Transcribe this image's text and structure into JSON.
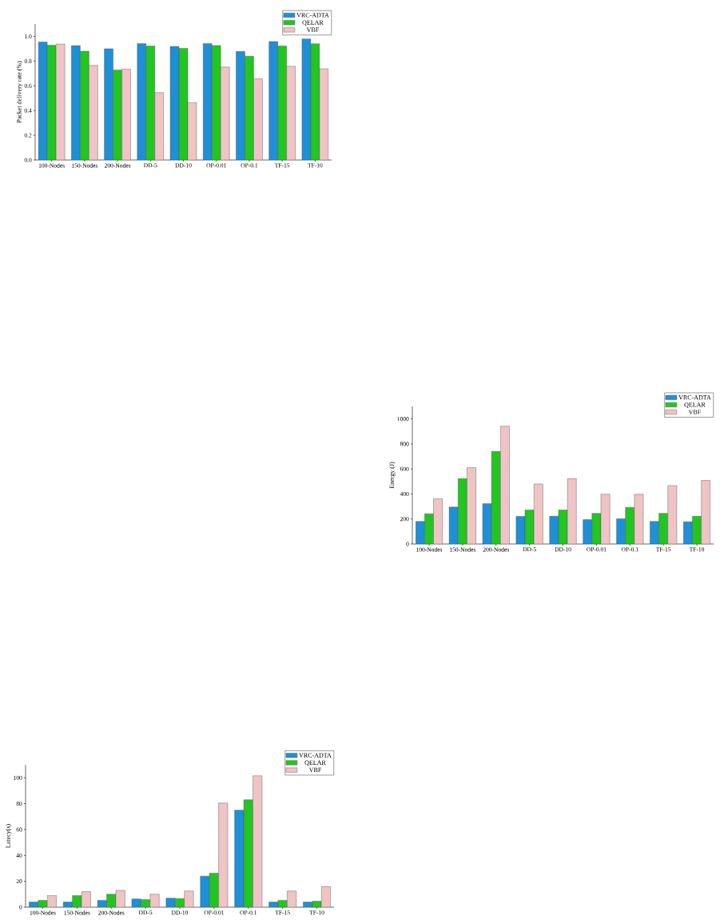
{
  "chart_data": [
    {
      "type": "bar",
      "ylabel": "Packet delivery rate (%)",
      "categories": [
        "100-Nodes",
        "150-Nodes",
        "200-Nodes",
        "DD-5",
        "DD-10",
        "OP-0.01",
        "OP-0.1",
        "TF-15",
        "TF-10"
      ],
      "series": [
        {
          "name": "VRC-ADTA",
          "color": "#1f8fd8",
          "values": [
            0.955,
            0.925,
            0.9,
            0.942,
            0.918,
            0.942,
            0.878,
            0.958,
            0.98
          ]
        },
        {
          "name": "QELAR",
          "color": "#22c522",
          "values": [
            0.928,
            0.88,
            0.728,
            0.922,
            0.903,
            0.926,
            0.84,
            0.922,
            0.942
          ]
        },
        {
          "name": "VBF",
          "color": "#f0c4c4",
          "values": [
            0.938,
            0.765,
            0.735,
            0.545,
            0.465,
            0.752,
            0.657,
            0.758,
            0.738
          ]
        }
      ],
      "ylim": [
        0,
        1.1
      ],
      "yticks": [
        {
          "value": 0,
          "label": "0.0"
        },
        {
          "value": 0.2,
          "label": "0.2"
        },
        {
          "value": 0.4,
          "label": "0.4"
        },
        {
          "value": 0.6,
          "label": "0.6"
        },
        {
          "value": 0.8,
          "label": "0.8"
        },
        {
          "value": 1.0,
          "label": "1.0"
        }
      ],
      "legend": "top right"
    },
    {
      "type": "bar",
      "ylabel": "Energy (J)",
      "categories": [
        "100-Nodes",
        "150-Nodes",
        "200-Nodes",
        "DD-5",
        "DD-10",
        "OP-0.01",
        "OP-0.1",
        "TF-15",
        "TF-10"
      ],
      "series": [
        {
          "name": "VRC-ADTA",
          "color": "#1f8fd8",
          "values": [
            180,
            295,
            323,
            220,
            222,
            195,
            202,
            180,
            178
          ]
        },
        {
          "name": "QELAR",
          "color": "#22c522",
          "values": [
            242,
            522,
            740,
            272,
            272,
            245,
            293,
            245,
            222
          ]
        },
        {
          "name": "VBF",
          "color": "#f0c4c4",
          "values": [
            362,
            610,
            942,
            480,
            522,
            398,
            398,
            467,
            508
          ]
        }
      ],
      "ylim": [
        0,
        1100
      ],
      "yticks": [
        0,
        200,
        400,
        600,
        800,
        1000
      ],
      "legend": "top right"
    },
    {
      "type": "bar",
      "ylabel": "Latecy(s)",
      "categories": [
        "100-Nodes",
        "150-Nodes",
        "200-Nodes",
        "DD-5",
        "DD-10",
        "OP-0.01",
        "OP-0.1",
        "TF-15",
        "TF-10"
      ],
      "series": [
        {
          "name": "VRC-ADTA",
          "color": "#1f8fd8",
          "values": [
            4,
            4,
            5.3,
            6.4,
            7,
            24,
            75,
            4,
            4
          ]
        },
        {
          "name": "QELAR",
          "color": "#22c522",
          "values": [
            5.2,
            9,
            10,
            5.8,
            6.7,
            26.3,
            83,
            5.3,
            4.6
          ]
        },
        {
          "name": "VBF",
          "color": "#f0c4c4",
          "values": [
            9,
            12,
            13,
            10,
            12.5,
            80.5,
            101.5,
            12.5,
            16
          ]
        }
      ],
      "ylim": [
        0,
        110
      ],
      "yticks": [
        0,
        20,
        40,
        60,
        80,
        100
      ],
      "legend": "top right"
    }
  ]
}
